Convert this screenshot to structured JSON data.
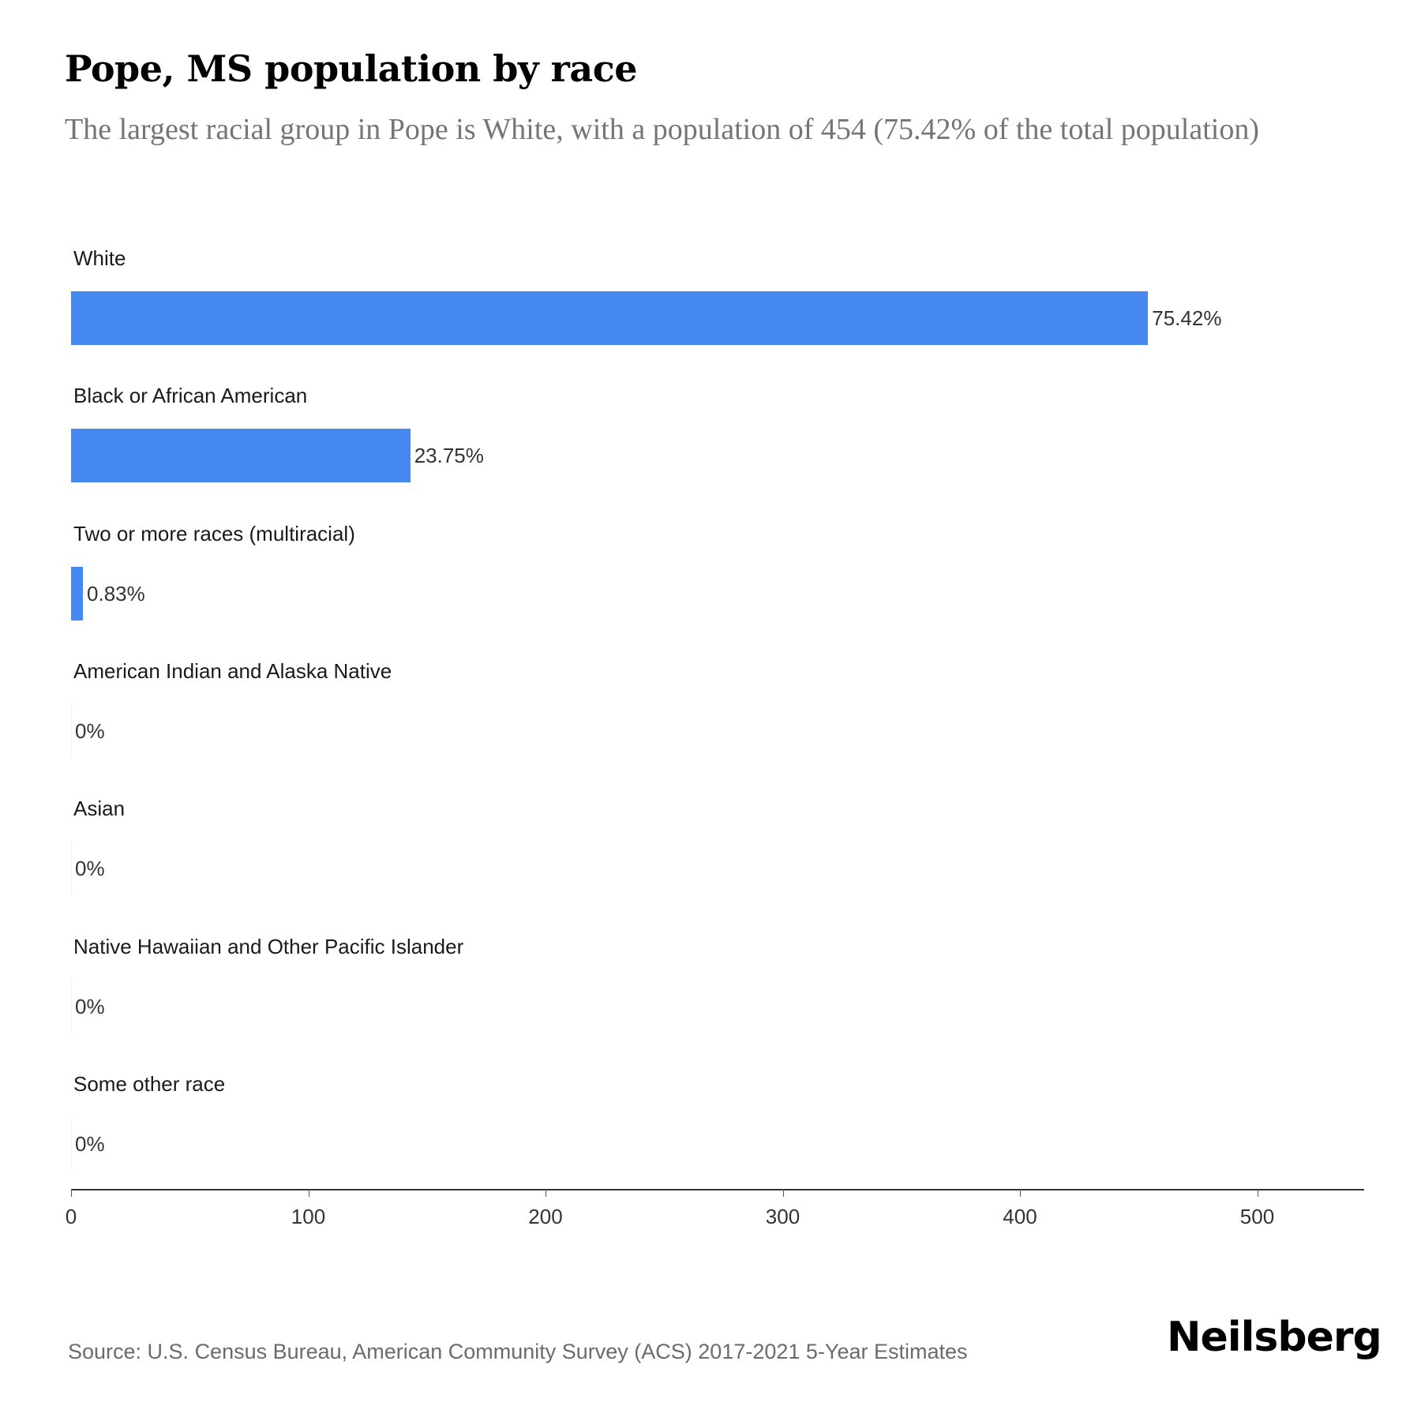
{
  "title": "Pope, MS population by race",
  "subtitle": "The largest racial group in Pope is White, with a population of 454 (75.42% of the total population)",
  "source": "Source: U.S. Census Bureau, American Community Survey (ACS) 2017-2021 5-Year Estimates",
  "brand": "Neilsberg",
  "colors": {
    "bar": "#4589f0",
    "text": "#1a1a1a",
    "subtitle": "#757575"
  },
  "chart_data": {
    "type": "bar",
    "orientation": "horizontal",
    "title": "Pope, MS population by race",
    "subtitle": "The largest racial group in Pope is White, with a population of 454 (75.42% of the total population)",
    "categories": [
      "White",
      "Black or African American",
      "Two or more races (multiracial)",
      "American Indian and Alaska Native",
      "Asian",
      "Native Hawaiian and Other Pacific Islander",
      "Some other race"
    ],
    "values": [
      454,
      143,
      5,
      0,
      0,
      0,
      0
    ],
    "labels": [
      "75.42%",
      "23.75%",
      "0.83%",
      "0%",
      "0%",
      "0%",
      "0%"
    ],
    "xlabel": "",
    "ylabel": "",
    "xlim": [
      0,
      545
    ],
    "xticks": [
      "0",
      "100",
      "200",
      "300",
      "400",
      "500"
    ],
    "grid": false,
    "legend": "none"
  }
}
